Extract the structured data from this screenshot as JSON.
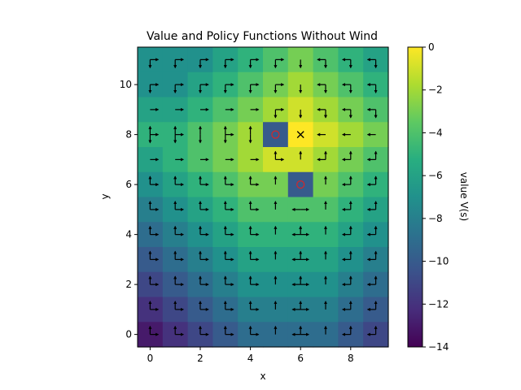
{
  "chart_data": {
    "type": "heatmap",
    "title": "Value and Policy Functions Without Wind",
    "xlabel": "x",
    "ylabel": "y",
    "colorbar_label": "value V(s)",
    "colormap": "viridis",
    "xlim": [
      -0.5,
      9.5
    ],
    "ylim": [
      -0.5,
      11.5
    ],
    "vmin": -14,
    "vmax": 0,
    "x_ticks": [
      0,
      2,
      4,
      6,
      8
    ],
    "y_ticks": [
      0,
      2,
      4,
      6,
      8,
      10
    ],
    "colorbar_ticks": [
      0,
      -2,
      -4,
      -6,
      -8,
      -10,
      -12,
      -14
    ],
    "goal": [
      6,
      8
    ],
    "obstacles": [
      [
        5,
        8
      ],
      [
        6,
        6
      ]
    ],
    "values_top_to_bottom": [
      [
        -7,
        -7,
        -7,
        -6,
        -5,
        -4,
        -3,
        -4,
        -5,
        -6
      ],
      [
        -7,
        -7,
        -6,
        -5,
        -4,
        -3,
        -2,
        -3,
        -4,
        -5
      ],
      [
        -6,
        -6,
        -5,
        -4,
        -3,
        -2,
        -1,
        -2,
        -3,
        -4
      ],
      [
        -5,
        -5,
        -4,
        -3,
        -2,
        -10,
        0,
        -1,
        -2,
        -3
      ],
      [
        -6,
        -5,
        -4,
        -3,
        -2,
        -1,
        -1,
        -2,
        -3,
        -4
      ],
      [
        -7,
        -6,
        -5,
        -4,
        -3,
        -3,
        -10,
        -3,
        -4,
        -5
      ],
      [
        -8,
        -7,
        -6,
        -5,
        -4,
        -4,
        -4,
        -4,
        -5,
        -6
      ],
      [
        -9,
        -8,
        -7,
        -6,
        -5,
        -5,
        -5,
        -5,
        -6,
        -7
      ],
      [
        -10,
        -9,
        -8,
        -7,
        -6,
        -6,
        -6,
        -6,
        -7,
        -8
      ],
      [
        -11,
        -10,
        -9,
        -8,
        -7,
        -7,
        -7,
        -7,
        -8,
        -9
      ],
      [
        -12,
        -11,
        -10,
        -9,
        -8,
        -8,
        -8,
        -8,
        -9,
        -10
      ],
      [
        -13,
        -12,
        -11,
        -10,
        -9,
        -9,
        -9,
        -9,
        -10,
        -11
      ]
    ],
    "policy_top_to_bottom": [
      [
        "RD",
        "RD",
        "RD",
        "RD",
        "RD",
        "RD",
        "D",
        "LD",
        "LD",
        "LD"
      ],
      [
        "RD",
        "RD",
        "RD",
        "RD",
        "RD",
        "RD",
        "D",
        "LD",
        "LD",
        "LD"
      ],
      [
        "R",
        "R",
        "R",
        "R",
        "R",
        "RD",
        "D",
        "LD",
        "LD",
        "LD"
      ],
      [
        "RUD",
        "RUD",
        "UD",
        "RUD",
        "UD",
        "",
        "",
        "L",
        "L",
        "L"
      ],
      [
        "R",
        "R",
        "R",
        "R",
        "R",
        "RU",
        "U",
        "LU",
        "LU",
        "LU"
      ],
      [
        "RU",
        "RU",
        "RU",
        "RU",
        "RU",
        "U",
        "",
        "U",
        "LU",
        "LU"
      ],
      [
        "RU",
        "RU",
        "RU",
        "RU",
        "RU",
        "U",
        "LR",
        "U",
        "LU",
        "LU"
      ],
      [
        "RU",
        "RU",
        "RU",
        "RU",
        "RU",
        "U",
        "LRU",
        "U",
        "LU",
        "LU"
      ],
      [
        "RU",
        "RU",
        "RU",
        "RU",
        "RU",
        "U",
        "LRU",
        "U",
        "LU",
        "LU"
      ],
      [
        "RU",
        "RU",
        "RU",
        "RU",
        "RU",
        "U",
        "LRU",
        "U",
        "LU",
        "LU"
      ],
      [
        "RU",
        "RU",
        "RU",
        "RU",
        "RU",
        "U",
        "LRU",
        "U",
        "LU",
        "LU"
      ],
      [
        "RU",
        "RU",
        "RU",
        "RU",
        "RU",
        "U",
        "LRU",
        "U",
        "LU",
        "LU"
      ]
    ]
  }
}
